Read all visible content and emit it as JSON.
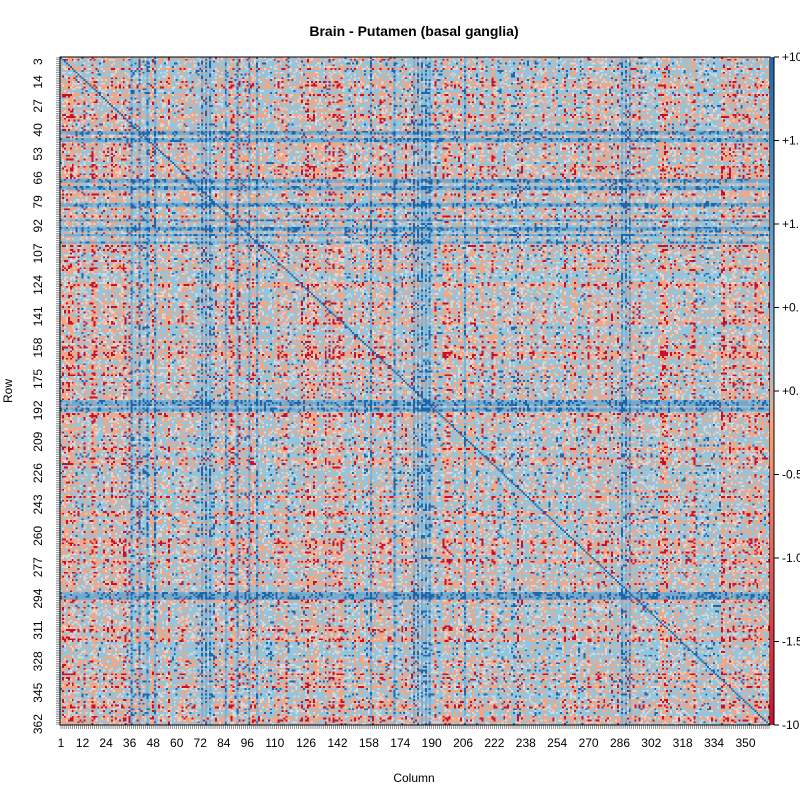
{
  "chart_data": {
    "type": "heatmap",
    "title": "Brain - Putamen (basal ganglia)",
    "xlabel": "Column",
    "ylabel": "Row",
    "n_rows": 362,
    "n_cols": 362,
    "row_ticks": [
      "3",
      "14",
      "27",
      "40",
      "53",
      "66",
      "79",
      "92",
      "107",
      "124",
      "141",
      "158",
      "175",
      "192",
      "209",
      "226",
      "243",
      "260",
      "277",
      "294",
      "311",
      "328",
      "345",
      "362"
    ],
    "col_ticks": [
      "1",
      "12",
      "24",
      "36",
      "48",
      "60",
      "72",
      "84",
      "96",
      "110",
      "126",
      "142",
      "158",
      "174",
      "190",
      "206",
      "222",
      "238",
      "254",
      "270",
      "286",
      "302",
      "318",
      "334",
      "350"
    ],
    "colorbar": {
      "labels": [
        "+10",
        "+1.",
        "+1.",
        "+0.",
        "+0.",
        "-0.5",
        "-1.0",
        "-1.5",
        "-10"
      ],
      "min": -10,
      "max": 10
    },
    "colors": {
      "strong_negative": "#c8102e",
      "negative": "#f4a582",
      "neutral": "#d9d9d9",
      "positive": "#92c5de",
      "strong_positive": "#2166ac",
      "axis": "#000000"
    },
    "grid": false,
    "legend_position": "right"
  }
}
